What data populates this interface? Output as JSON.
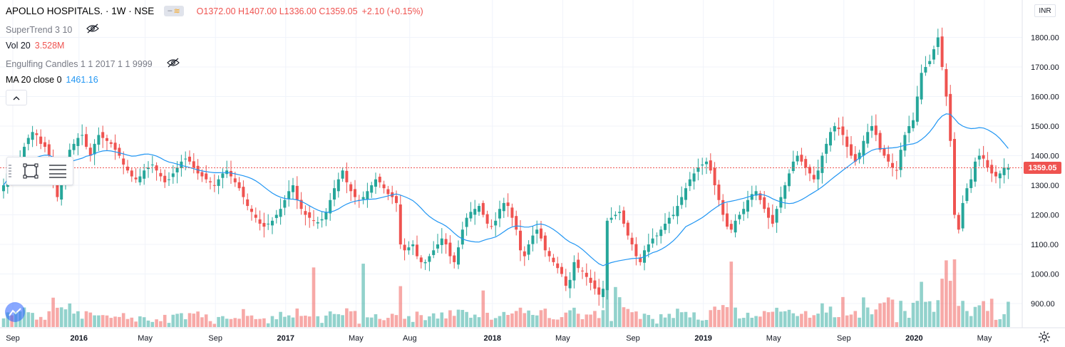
{
  "header": {
    "symbol": "APOLLO HOSPITALS. · 1W · NSE",
    "ohlc": "O1372.00  H1407.00  L1336.00  C1359.05",
    "change": "+2.10 (+0.15%)"
  },
  "indicators": {
    "supertrend": "SuperTrend 3 10",
    "vol_label": "Vol 20",
    "vol_value": "3.528M",
    "engulfing": "Engulfing Candles 1 1 2017 1 1 9999",
    "ma_label": "MA 20 close 0",
    "ma_value": "1461.16"
  },
  "currency": "INR",
  "last_price_label": "1359.05",
  "colors": {
    "up": "#26a69a",
    "down": "#ef5350",
    "ma": "#2196f3",
    "grid": "#f0f3fa",
    "text": "#131722",
    "muted": "#787b86"
  },
  "icons": [
    "eye-off-icon",
    "chevron-up-icon",
    "rectangle-tool-icon",
    "lines-tool-icon",
    "tradingview-logo-icon",
    "gear-icon"
  ],
  "chart_data": {
    "type": "candlestick",
    "title": "APOLLO HOSPITALS. · 1W · NSE",
    "y_ticks": [
      900,
      1000,
      1100,
      1200,
      1300,
      1400,
      1500,
      1600,
      1700,
      1800
    ],
    "y_tick_labels": [
      "900.00",
      "1000.00",
      "1100.00",
      "1200.00",
      "1300.00",
      "1400.00",
      "1500.00",
      "1600.00",
      "1700.00",
      "1800.00"
    ],
    "ylim": [
      850,
      1900
    ],
    "x_labels": [
      {
        "label": "Sep",
        "i": 0
      },
      {
        "label": "2016",
        "i": 16
      },
      {
        "label": "May",
        "i": 32
      },
      {
        "label": "Sep",
        "i": 49
      },
      {
        "label": "2017",
        "i": 66
      },
      {
        "label": "May",
        "i": 83
      },
      {
        "label": "Aug",
        "i": 96
      },
      {
        "label": "2018",
        "i": 116
      },
      {
        "label": "May",
        "i": 133
      },
      {
        "label": "Sep",
        "i": 150
      },
      {
        "label": "2019",
        "i": 167
      },
      {
        "label": "May",
        "i": 184
      },
      {
        "label": "Sep",
        "i": 201
      },
      {
        "label": "2020",
        "i": 218
      },
      {
        "label": "May",
        "i": 235
      }
    ],
    "series": [
      {
        "name": "price",
        "close": [
          1300,
          1340,
          1320,
          1360,
          1390,
          1430,
          1460,
          1480,
          1470,
          1440,
          1430,
          1400,
          1310,
          1260,
          1300,
          1350,
          1420,
          1440,
          1460,
          1470,
          1430,
          1400,
          1440,
          1470,
          1460,
          1450,
          1440,
          1420,
          1400,
          1370,
          1350,
          1330,
          1320,
          1330,
          1350,
          1360,
          1370,
          1350,
          1330,
          1310,
          1320,
          1340,
          1360,
          1380,
          1390,
          1380,
          1360,
          1340,
          1330,
          1320,
          1310,
          1300,
          1320,
          1340,
          1350,
          1330,
          1310,
          1290,
          1260,
          1230,
          1210,
          1190,
          1170,
          1160,
          1170,
          1180,
          1200,
          1220,
          1250,
          1280,
          1300,
          1250,
          1220,
          1200,
          1190,
          1180,
          1175,
          1185,
          1210,
          1250,
          1290,
          1320,
          1350,
          1310,
          1280,
          1260,
          1250,
          1260,
          1280,
          1300,
          1320,
          1310,
          1290,
          1270,
          1260,
          1240,
          1100,
          1080,
          1090,
          1100,
          1060,
          1040,
          1040,
          1060,
          1080,
          1100,
          1120,
          1100,
          1060,
          1040,
          1090,
          1150,
          1190,
          1210,
          1220,
          1230,
          1200,
          1170,
          1160,
          1180,
          1220,
          1240,
          1230,
          1190,
          1150,
          1080,
          1060,
          1100,
          1130,
          1150,
          1120,
          1080,
          1060,
          1040,
          1020,
          1000,
          960,
          980,
          1040,
          1020,
          1010,
          990,
          970,
          950,
          930,
          950,
          1180,
          1190,
          1200,
          1210,
          1170,
          1130,
          1100,
          1060,
          1040,
          1080,
          1100,
          1120,
          1130,
          1150,
          1170,
          1190,
          1200,
          1230,
          1260,
          1290,
          1320,
          1340,
          1360,
          1370,
          1380,
          1350,
          1300,
          1250,
          1200,
          1160,
          1150,
          1180,
          1200,
          1220,
          1250,
          1270,
          1280,
          1250,
          1220,
          1190,
          1170,
          1220,
          1260,
          1300,
          1340,
          1380,
          1400,
          1380,
          1360,
          1340,
          1320,
          1350,
          1400,
          1440,
          1480,
          1500,
          1490,
          1470,
          1430,
          1400,
          1380,
          1410,
          1450,
          1480,
          1500,
          1470,
          1420,
          1400,
          1380,
          1360,
          1350,
          1420,
          1470,
          1500,
          1520,
          1600,
          1680,
          1700,
          1720,
          1760,
          1800,
          1700,
          1600,
          1450,
          1200,
          1150,
          1240,
          1290,
          1320,
          1380,
          1400,
          1390,
          1360,
          1340,
          1330,
          1340,
          1360,
          1359
        ]
      },
      {
        "name": "MA 20 close 0"
      },
      {
        "name": "Vol 20"
      }
    ]
  }
}
